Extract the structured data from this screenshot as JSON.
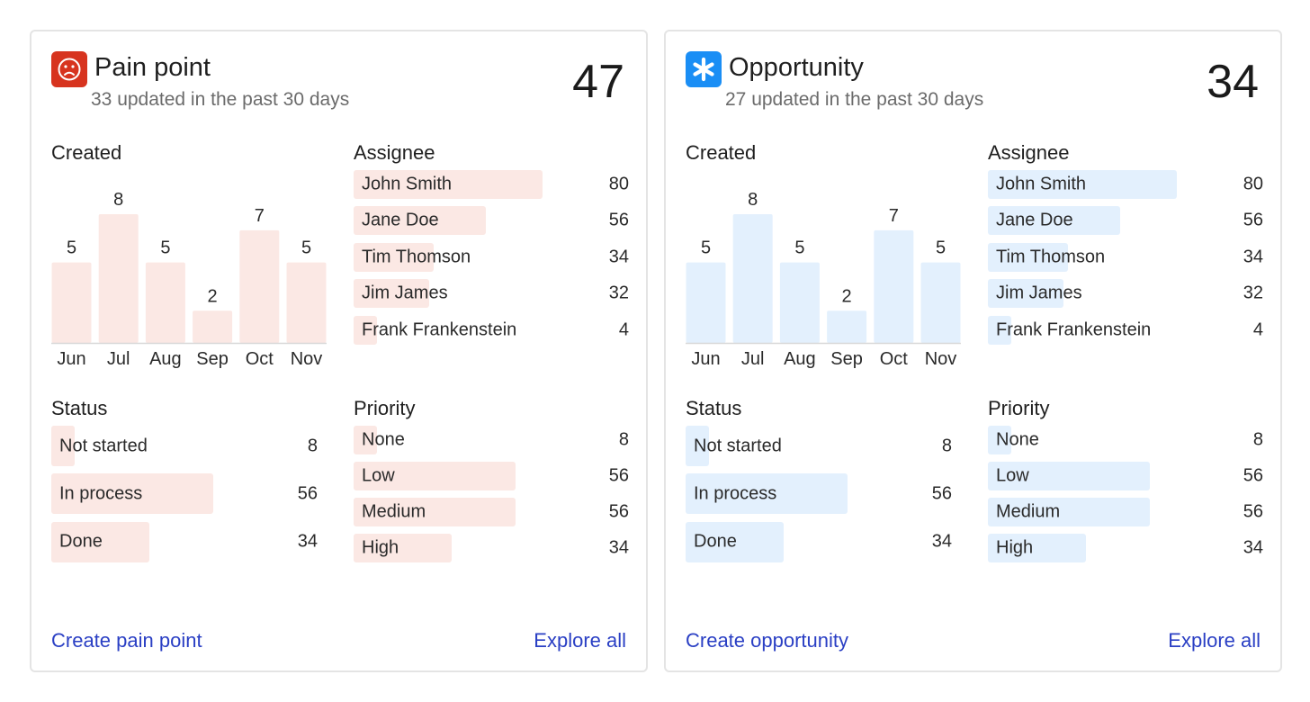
{
  "colors": {
    "pain_fill": "#fbe8e4",
    "opp_fill": "#e3f0fd",
    "pain_icon_bg": "#d7341f",
    "opp_icon_bg": "#1a8ef5",
    "link": "#2a3fc4"
  },
  "cards": [
    {
      "key": "pain",
      "icon": "sad-face-icon",
      "title": "Pain point",
      "subtitle": "33 updated in the past 30 days",
      "total": "47",
      "created": {
        "title": "Created",
        "chart_data": {
          "type": "bar",
          "categories": [
            "Jun",
            "Jul",
            "Aug",
            "Sep",
            "Oct",
            "Nov"
          ],
          "values": [
            5,
            8,
            5,
            2,
            7,
            5
          ],
          "ylim": [
            0,
            8
          ]
        }
      },
      "assignee": {
        "title": "Assignee",
        "items": [
          {
            "label": "John Smith",
            "value": 80
          },
          {
            "label": "Jane Doe",
            "value": 56
          },
          {
            "label": "Tim Thomson",
            "value": 34
          },
          {
            "label": "Jim James",
            "value": 32
          },
          {
            "label": "Frank Frankenstein",
            "value": 4
          }
        ]
      },
      "status": {
        "title": "Status",
        "items": [
          {
            "label": "Not started",
            "value": 8
          },
          {
            "label": "In process",
            "value": 56
          },
          {
            "label": "Done",
            "value": 34
          }
        ]
      },
      "priority": {
        "title": "Priority",
        "items": [
          {
            "label": "None",
            "value": 8
          },
          {
            "label": "Low",
            "value": 56
          },
          {
            "label": "Medium",
            "value": 56
          },
          {
            "label": "High",
            "value": 34
          }
        ]
      },
      "create_label": "Create pain point",
      "explore_label": "Explore all"
    },
    {
      "key": "opp",
      "icon": "asterisk-icon",
      "title": "Opportunity",
      "subtitle": "27 updated in the past 30 days",
      "total": "34",
      "created": {
        "title": "Created",
        "chart_data": {
          "type": "bar",
          "categories": [
            "Jun",
            "Jul",
            "Aug",
            "Sep",
            "Oct",
            "Nov"
          ],
          "values": [
            5,
            8,
            5,
            2,
            7,
            5
          ],
          "ylim": [
            0,
            8
          ]
        }
      },
      "assignee": {
        "title": "Assignee",
        "items": [
          {
            "label": "John Smith",
            "value": 80
          },
          {
            "label": "Jane Doe",
            "value": 56
          },
          {
            "label": "Tim Thomson",
            "value": 34
          },
          {
            "label": "Jim James",
            "value": 32
          },
          {
            "label": "Frank Frankenstein",
            "value": 4
          }
        ]
      },
      "status": {
        "title": "Status",
        "items": [
          {
            "label": "Not started",
            "value": 8
          },
          {
            "label": "In process",
            "value": 56
          },
          {
            "label": "Done",
            "value": 34
          }
        ]
      },
      "priority": {
        "title": "Priority",
        "items": [
          {
            "label": "None",
            "value": 8
          },
          {
            "label": "Low",
            "value": 56
          },
          {
            "label": "Medium",
            "value": 56
          },
          {
            "label": "High",
            "value": 34
          }
        ]
      },
      "create_label": "Create opportunity",
      "explore_label": "Explore all"
    }
  ]
}
